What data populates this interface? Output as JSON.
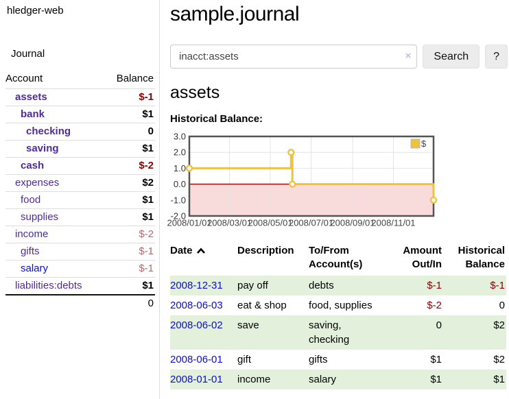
{
  "colors": {
    "link_purple": "#4f2b9c",
    "link_blue": "#0b0bdd",
    "negative_strong": "#8b0000",
    "negative_muted": "#b36a6e",
    "row_green": "#e2f0dc",
    "accent_gold": "#edc240"
  },
  "sidebar": {
    "brand": "hledger-web",
    "journal_link": "Journal",
    "accounts_table": {
      "account_header": "Account",
      "balance_header": "Balance",
      "rows": [
        {
          "account": "assets",
          "depth": 0,
          "bold": true,
          "balance": "$-1",
          "balance_color": "strong-red",
          "balance_bold": true,
          "link": "purple"
        },
        {
          "account": "bank",
          "depth": 1,
          "bold": true,
          "balance": "$1",
          "balance_color": "black",
          "balance_bold": true,
          "link": "purple"
        },
        {
          "account": "checking",
          "depth": 2,
          "bold": true,
          "balance": "0",
          "balance_color": "black",
          "balance_bold": true,
          "link": "purple"
        },
        {
          "account": "saving",
          "depth": 2,
          "bold": true,
          "balance": "$1",
          "balance_color": "black",
          "balance_bold": true,
          "link": "purple"
        },
        {
          "account": "cash",
          "depth": 1,
          "bold": true,
          "balance": "$-2",
          "balance_color": "strong-red",
          "balance_bold": true,
          "link": "purple"
        },
        {
          "account": "expenses",
          "depth": 0,
          "bold": false,
          "balance": "$2",
          "balance_color": "black",
          "balance_bold": true,
          "link": "purple"
        },
        {
          "account": "food",
          "depth": 1,
          "bold": false,
          "balance": "$1",
          "balance_color": "black",
          "balance_bold": true,
          "link": "purple"
        },
        {
          "account": "supplies",
          "depth": 1,
          "bold": false,
          "balance": "$1",
          "balance_color": "black",
          "balance_bold": true,
          "link": "purple"
        },
        {
          "account": "income",
          "depth": 0,
          "bold": false,
          "balance": "$-2",
          "balance_color": "muted-red",
          "balance_bold": false,
          "link": "purple"
        },
        {
          "account": "gifts",
          "depth": 1,
          "bold": false,
          "balance": "$-1",
          "balance_color": "muted-red",
          "balance_bold": false,
          "link": "purple"
        },
        {
          "account": "salary",
          "depth": 1,
          "bold": false,
          "balance": "$-1",
          "balance_color": "muted-red",
          "balance_bold": false,
          "link": "blue"
        },
        {
          "account": "liabilities:debts",
          "depth": 0,
          "bold": false,
          "balance": "$1",
          "balance_color": "black",
          "balance_bold": true,
          "link": "purple"
        }
      ],
      "total": "0"
    }
  },
  "header": {
    "title": "sample.journal"
  },
  "search": {
    "value": "inacct:assets",
    "clear_icon": "×",
    "button_label": "Search",
    "help_label": "?"
  },
  "account": {
    "heading": "assets",
    "chart_label": "Historical Balance:"
  },
  "chart_data": {
    "type": "line",
    "title": "Historical Balance",
    "step": true,
    "x_range": [
      "2008-01-01",
      "2008-12-31"
    ],
    "ylim": [
      -2,
      3
    ],
    "yticks": [
      {
        "v": 3,
        "label": "3.0"
      },
      {
        "v": 2,
        "label": "2.0"
      },
      {
        "v": 1,
        "label": "1.0"
      },
      {
        "v": 0,
        "label": "0.0"
      },
      {
        "v": -1,
        "label": "-1.0"
      },
      {
        "v": -2,
        "label": "-2.0"
      }
    ],
    "xticks": [
      {
        "date": "2008-01-01",
        "label": "2008/01/01"
      },
      {
        "date": "2008-03-01",
        "label": "2008/03/01"
      },
      {
        "date": "2008-05-01",
        "label": "2008/05/01"
      },
      {
        "date": "2008-07-01",
        "label": "2008/07/01"
      },
      {
        "date": "2008-09-01",
        "label": "2008/09/01"
      },
      {
        "date": "2008-11-01",
        "label": "2008/11/01"
      }
    ],
    "series": [
      {
        "name": "$",
        "color": "#edc240",
        "points": [
          [
            "2008-01-01",
            1
          ],
          [
            "2008-06-01",
            2
          ],
          [
            "2008-06-03",
            0
          ],
          [
            "2008-12-31",
            -1
          ]
        ]
      }
    ],
    "legend": {
      "position": "top-right",
      "label": "$"
    },
    "grid": true,
    "colors": {
      "negative_region": "#f9dbdb",
      "zero_line": "#8b0000",
      "gridline": "#e3e3e3",
      "border": "#545454",
      "tick_text": "#444444",
      "point_fill": "#ffffff"
    }
  },
  "register_table": {
    "headers": {
      "date": "Date",
      "description": "Description",
      "accounts": "To/From Account(s)",
      "amount": "Amount Out/In",
      "balance": "Historical Balance"
    },
    "rows": [
      {
        "date": "2008-12-31",
        "description": "pay off",
        "accounts": "debts",
        "amount": "$-1",
        "amount_negative": true,
        "balance": "$-1",
        "balance_negative": true
      },
      {
        "date": "2008-06-03",
        "description": "eat & shop",
        "accounts": "food, supplies",
        "amount": "$-2",
        "amount_negative": true,
        "balance": "0",
        "balance_negative": false
      },
      {
        "date": "2008-06-02",
        "description": "save",
        "accounts": "saving, checking",
        "amount": "0",
        "amount_negative": false,
        "balance": "$2",
        "balance_negative": false
      },
      {
        "date": "2008-06-01",
        "description": "gift",
        "accounts": "gifts",
        "amount": "$1",
        "amount_negative": false,
        "balance": "$2",
        "balance_negative": false
      },
      {
        "date": "2008-01-01",
        "description": "income",
        "accounts": "salary",
        "amount": "$1",
        "amount_negative": false,
        "balance": "$1",
        "balance_negative": false
      }
    ]
  }
}
